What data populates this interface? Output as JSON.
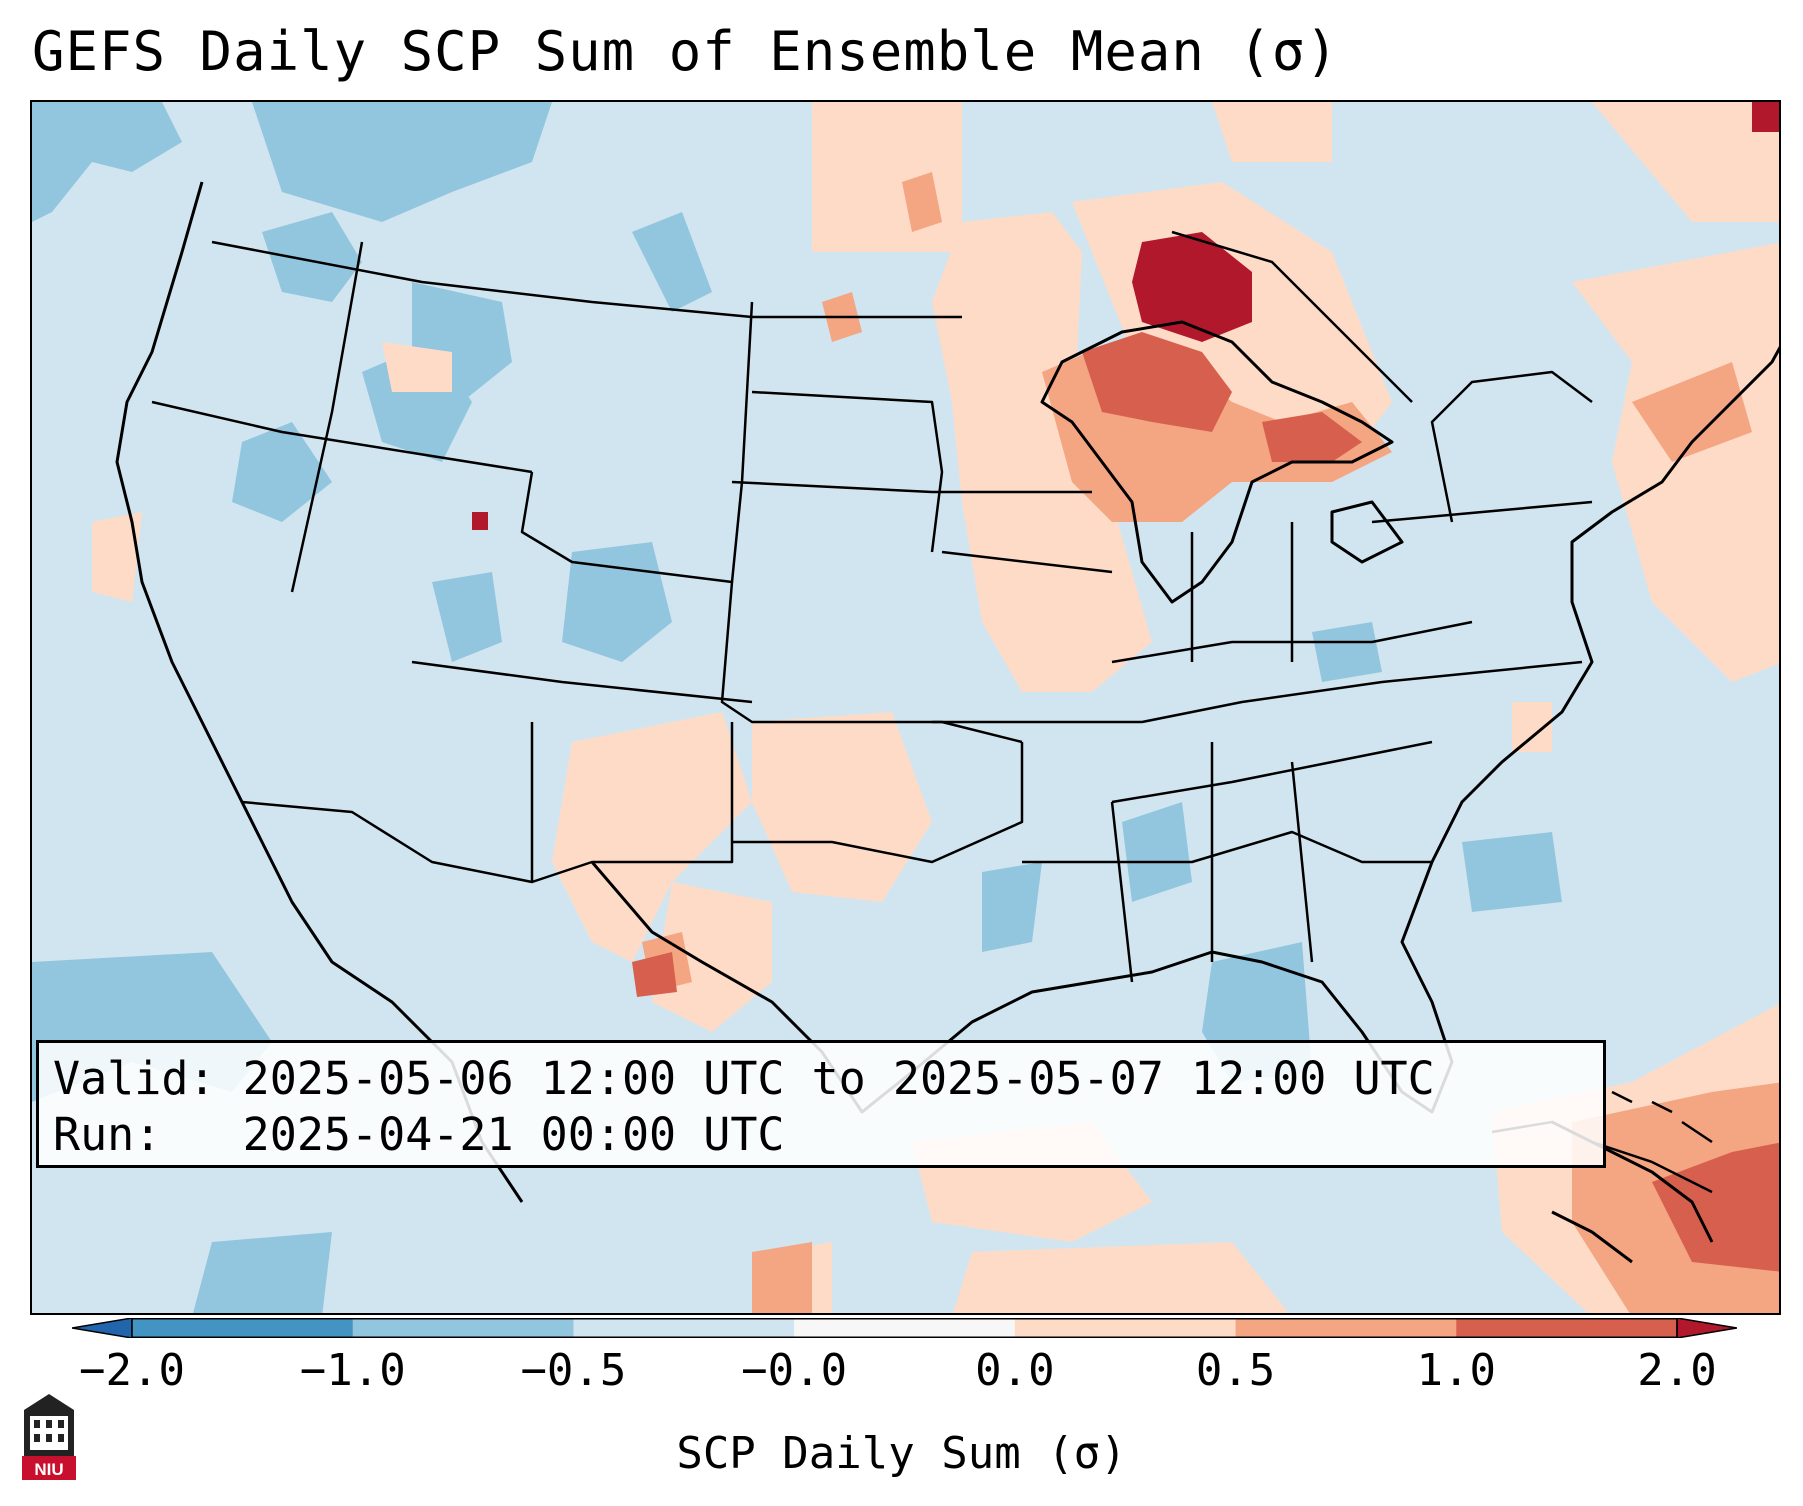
{
  "title": "GEFS Daily SCP Sum of Ensemble Mean (σ)",
  "info": {
    "valid_label": "Valid:",
    "valid_value": "2025-05-06 12:00 UTC to 2025-05-07 12:00 UTC",
    "run_label": "Run:",
    "run_value": "2025-04-21 00:00 UTC"
  },
  "colorbar": {
    "label": "SCP Daily Sum (σ)",
    "ticks": [
      "−2.0",
      "−1.0",
      "−0.5",
      "−0.0",
      "0.0",
      "0.5",
      "1.0",
      "2.0"
    ],
    "bins": [
      {
        "color": "#4393c3"
      },
      {
        "color": "#92c5de"
      },
      {
        "color": "#d1e5f0"
      },
      {
        "color": "#f7f7f7"
      },
      {
        "color": "#fddbc7"
      },
      {
        "color": "#f4a582"
      },
      {
        "color": "#d6604d"
      }
    ],
    "under_color": "#2166ac",
    "over_color": "#b2182b"
  },
  "logo": {
    "text": "NIU",
    "primary_color": "#c8102e"
  },
  "map": {
    "region": "contiguous-united-states",
    "projection": "lambert-conformal",
    "features": {
      "strong_positive_anomaly": "upper-great-lakes / lake-superior",
      "moderate_positive_anomaly": [
        "great-lakes",
        "northern-plains",
        "southern-plains",
        "new-england",
        "bahamas / caribbean"
      ],
      "negative_anomaly": [
        "northwest",
        "great-basin",
        "colorado",
        "mississippi",
        "gulf-of-mexico",
        "eastern-pacific"
      ]
    }
  }
}
